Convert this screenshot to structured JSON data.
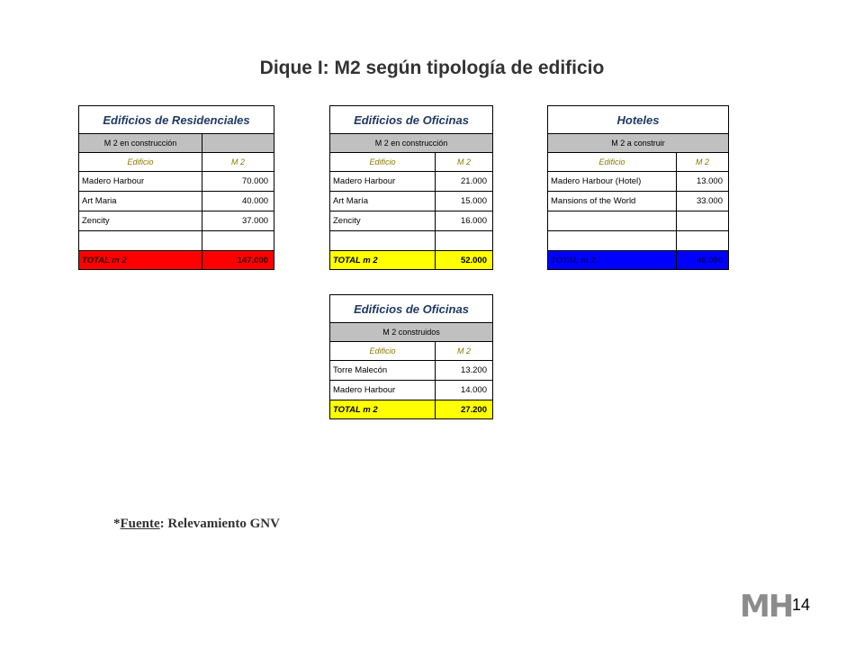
{
  "title": "Dique I: M2 según tipología de edificio",
  "tables": {
    "res": {
      "title": "Edificios de Residenciales",
      "subheader": "M 2 en construcción",
      "col1": "Edificio",
      "col2": "M 2",
      "rows": [
        {
          "name": "Madero Harbour",
          "value": "70.000"
        },
        {
          "name": "Art Maria",
          "value": "40.000"
        },
        {
          "name": "Zencity",
          "value": "37.000"
        },
        {
          "name": "",
          "value": ""
        }
      ],
      "total_label": "TOTAL   m 2",
      "total_value": "147.000"
    },
    "ofi1": {
      "title": "Edificios de Oficinas",
      "subheader": "M 2 en construcción",
      "col1": "Edificio",
      "col2": "M 2",
      "rows": [
        {
          "name": "Madero Harbour",
          "value": "21.000"
        },
        {
          "name": "Art María",
          "value": "15.000"
        },
        {
          "name": "Zencity",
          "value": "16.000"
        },
        {
          "name": "",
          "value": ""
        }
      ],
      "total_label": "TOTAL   m 2",
      "total_value": "52.000"
    },
    "hot": {
      "title": "Hoteles",
      "subheader": "M 2 a construir",
      "col1": "Edificio",
      "col2": "M 2",
      "rows": [
        {
          "name": "Madero Harbour (Hotel)",
          "value": "13.000"
        },
        {
          "name": "Mansions of the World",
          "value": "33.000"
        },
        {
          "name": "",
          "value": ""
        },
        {
          "name": "",
          "value": ""
        }
      ],
      "total_label": "TOTAL   m 2",
      "total_value": "46.000"
    },
    "ofi2": {
      "title": "Edificios de Oficinas",
      "subheader": "M 2  construidos",
      "col1": "Edificio",
      "col2": "M 2",
      "rows": [
        {
          "name": "Torre Malecón",
          "value": "13.200"
        },
        {
          "name": "Madero Harbour",
          "value": "14.000"
        }
      ],
      "total_label": "TOTAL   m 2",
      "total_value": "27.200"
    }
  },
  "source": {
    "prefix": "*",
    "label": "Fuente",
    "text": ": Relevamiento GNV"
  },
  "logo": "MH",
  "page_number": "14",
  "colors": {
    "red_total": "#ff0000",
    "yellow_total": "#ffff00",
    "blue_total": "#0000ff",
    "subheader": "#c0c0c0"
  }
}
